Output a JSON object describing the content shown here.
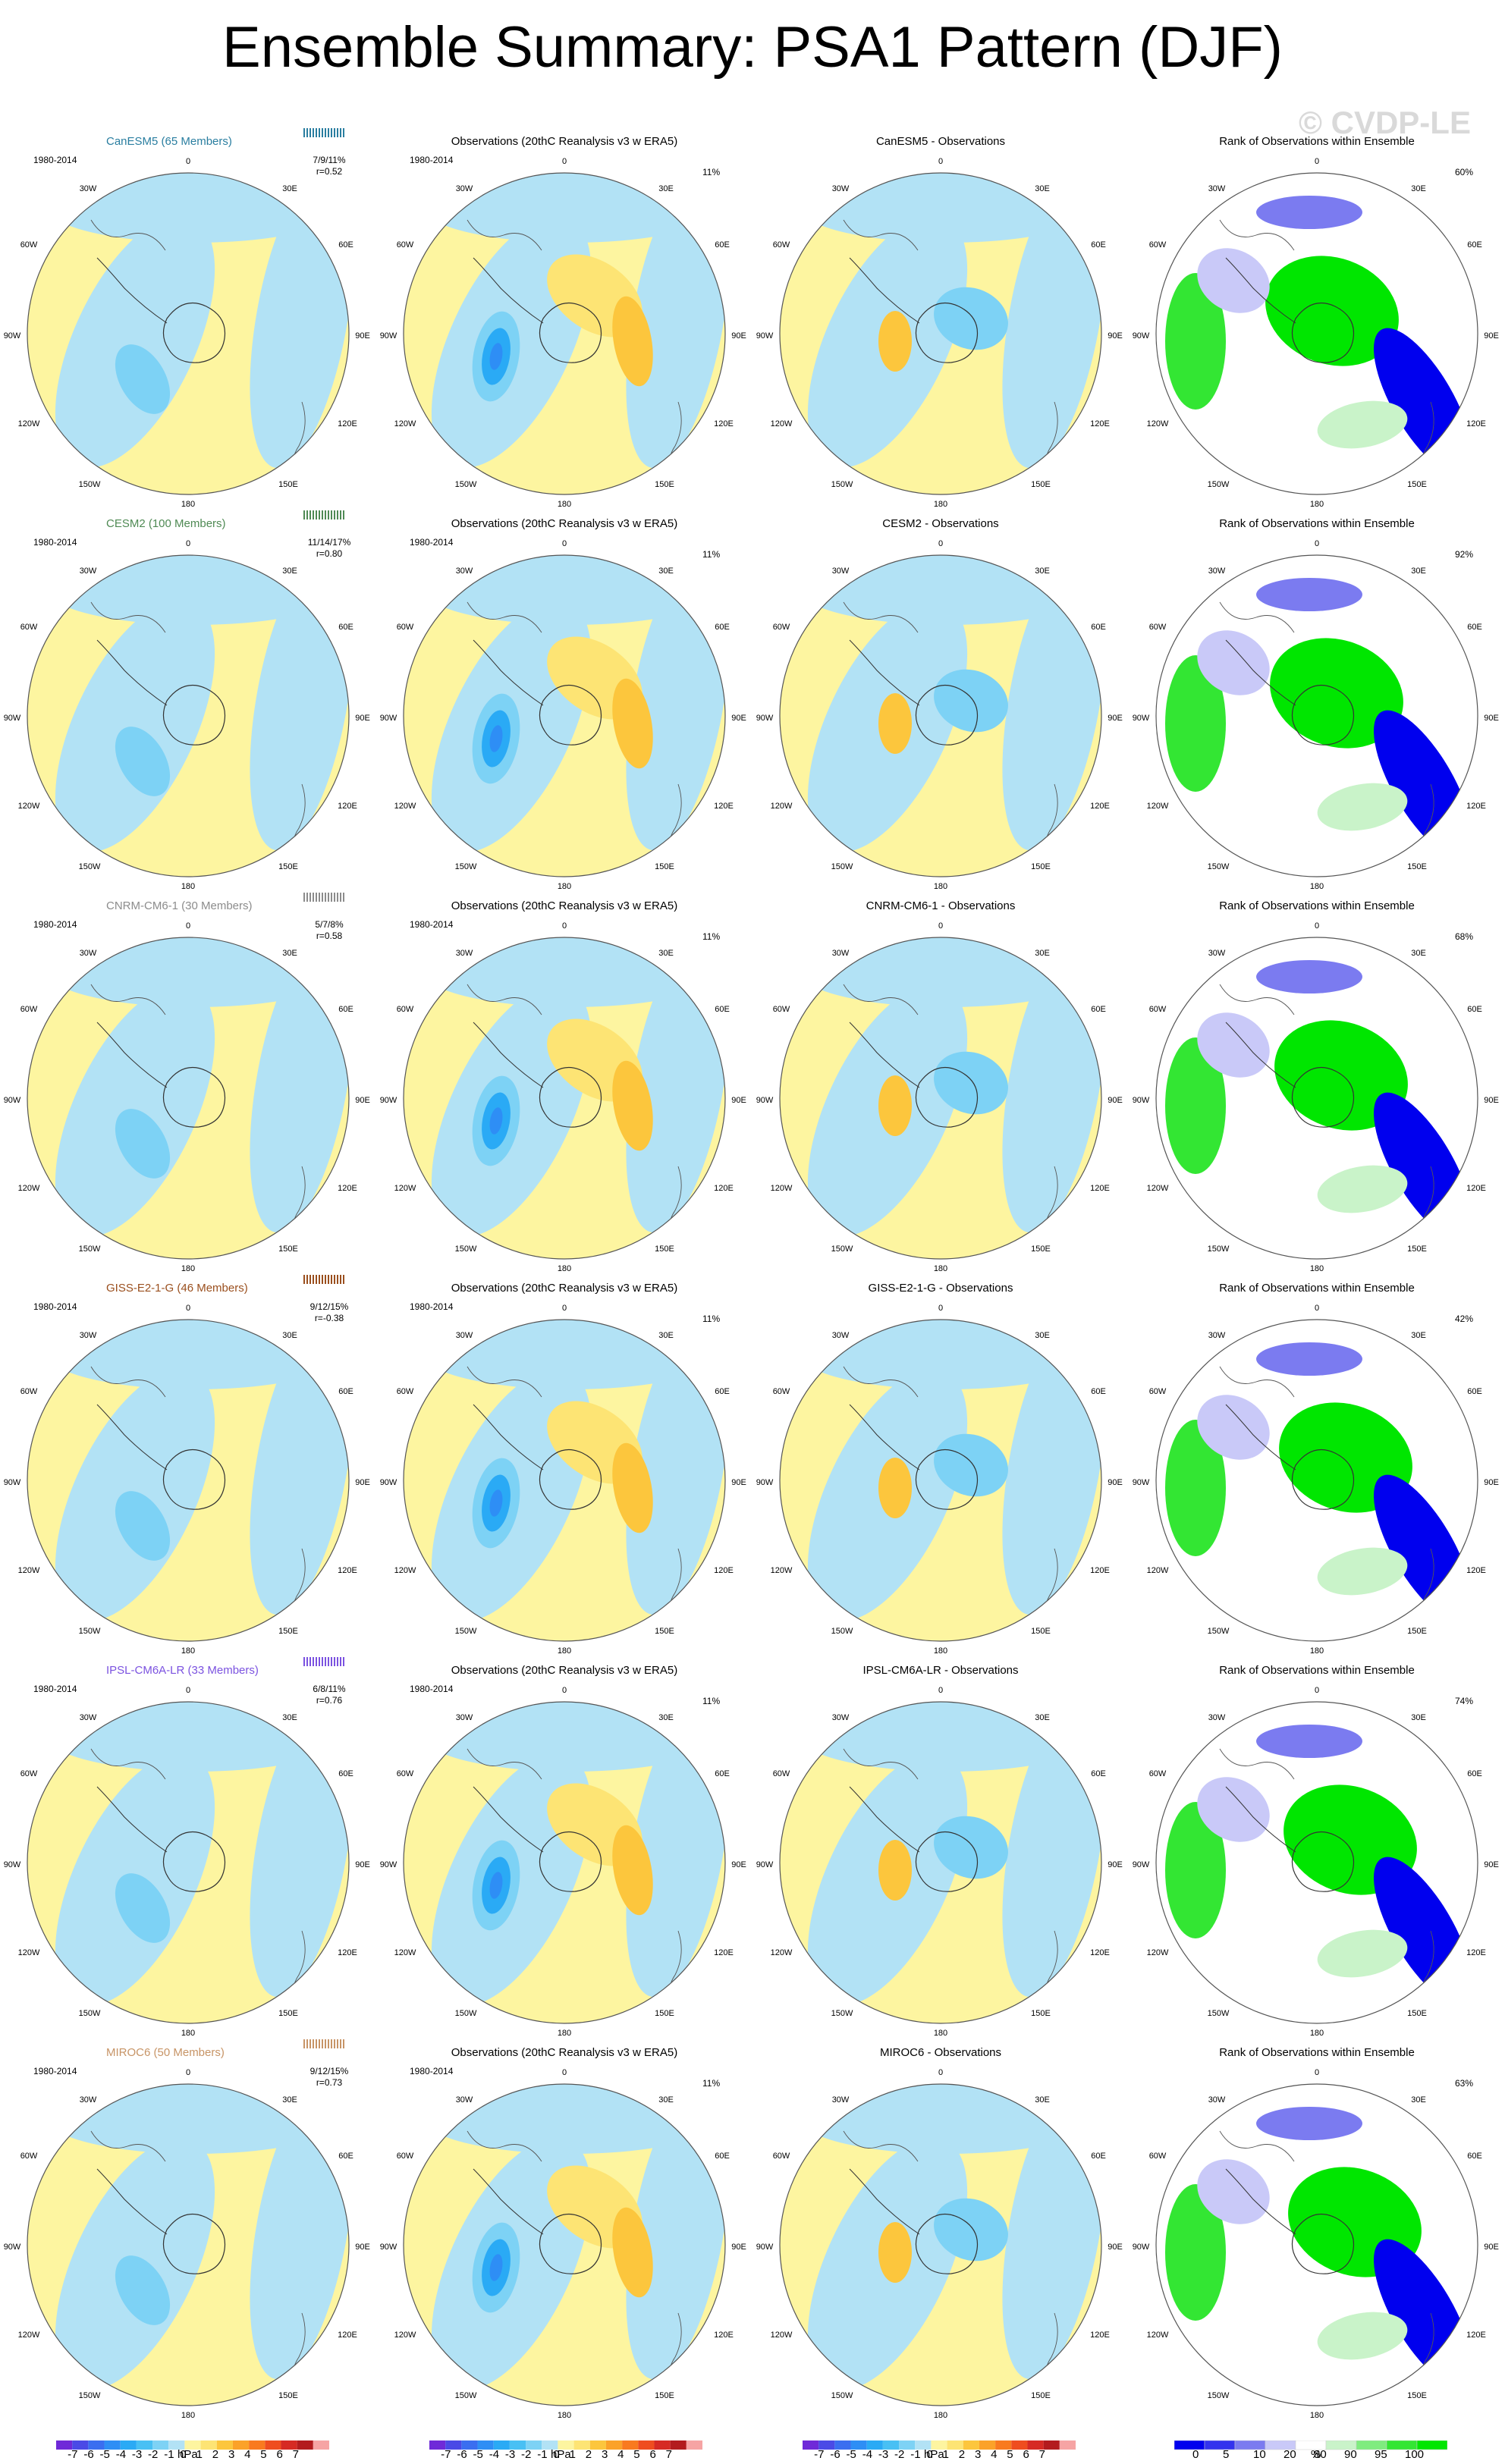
{
  "title": "Ensemble Summary: PSA1 Pattern (DJF)",
  "watermark": "© CVDP-LE",
  "period": "1980-2014",
  "obs_title": "Observations (20thC Reanalysis v3 w ERA5)",
  "obs_pct": "11%",
  "rank_title": "Rank of Observations within Ensemble",
  "lon_labels": [
    "0",
    "30E",
    "60E",
    "90E",
    "120E",
    "150E",
    "180",
    "150W",
    "120W",
    "90W",
    "60W",
    "30W"
  ],
  "colors": {
    "neg": [
      "#6f2ad8",
      "#4a4ae6",
      "#3a6ef0",
      "#2e8ef5",
      "#2aaaf5",
      "#48c0f4",
      "#7dd2f5",
      "#b2e2f5"
    ],
    "pos": [
      "#fdf5a0",
      "#fde474",
      "#fcc63d",
      "#fba229",
      "#f97a1f",
      "#ef4d1f",
      "#d62a24",
      "#b31b1e",
      "#f6a4a4"
    ],
    "rank": [
      "#0000ee",
      "#3333ee",
      "#7b7bf0",
      "#c9c9f8",
      "#ffffff",
      "#c9f3c9",
      "#7fec7f",
      "#33e633",
      "#00e600"
    ]
  },
  "rows": [
    {
      "model": "CanESM5",
      "members": "CanESM5 (65 Members)",
      "color": "#2a7ea0",
      "stats": "7/9/11%",
      "r": "r=0.52",
      "diff_title": "CanESM5 - Observations",
      "rank_pct": "60%"
    },
    {
      "model": "CESM2",
      "members": "CESM2 (100 Members)",
      "color": "#4f8a54",
      "stats": "11/14/17%",
      "r": "r=0.80",
      "diff_title": "CESM2 - Observations",
      "rank_pct": "92%"
    },
    {
      "model": "CNRM-CM6-1",
      "members": "CNRM-CM6-1 (30 Members)",
      "color": "#8c8c8c",
      "stats": "5/7/8%",
      "r": "r=0.58",
      "diff_title": "CNRM-CM6-1 - Observations",
      "rank_pct": "68%"
    },
    {
      "model": "GISS-E2-1-G",
      "members": "GISS-E2-1-G (46 Members)",
      "color": "#9a4f1e",
      "stats": "9/12/15%",
      "r": "r=-0.38",
      "diff_title": "GISS-E2-1-G - Observations",
      "rank_pct": "42%"
    },
    {
      "model": "IPSL-CM6A-LR",
      "members": "IPSL-CM6A-LR (33 Members)",
      "color": "#7b52e0",
      "stats": "6/8/11%",
      "r": "r=0.76",
      "diff_title": "IPSL-CM6A-LR - Observations",
      "rank_pct": "74%"
    },
    {
      "model": "MIROC6",
      "members": "MIROC6 (50 Members)",
      "color": "#c79466",
      "stats": "9/12/15%",
      "r": "r=0.73",
      "diff_title": "MIROC6 - Observations",
      "rank_pct": "63%"
    }
  ],
  "colorbar_hpa": {
    "labels": [
      "-7",
      "-6",
      "-5",
      "-4",
      "-3",
      "-2",
      "-1",
      "0",
      "1",
      "2",
      "3",
      "4",
      "5",
      "6",
      "7"
    ],
    "unit": "hPa"
  },
  "colorbar_rank": {
    "labels": [
      "0",
      "5",
      "10",
      "20",
      "80",
      "90",
      "95",
      "100"
    ],
    "unit": "%"
  }
}
